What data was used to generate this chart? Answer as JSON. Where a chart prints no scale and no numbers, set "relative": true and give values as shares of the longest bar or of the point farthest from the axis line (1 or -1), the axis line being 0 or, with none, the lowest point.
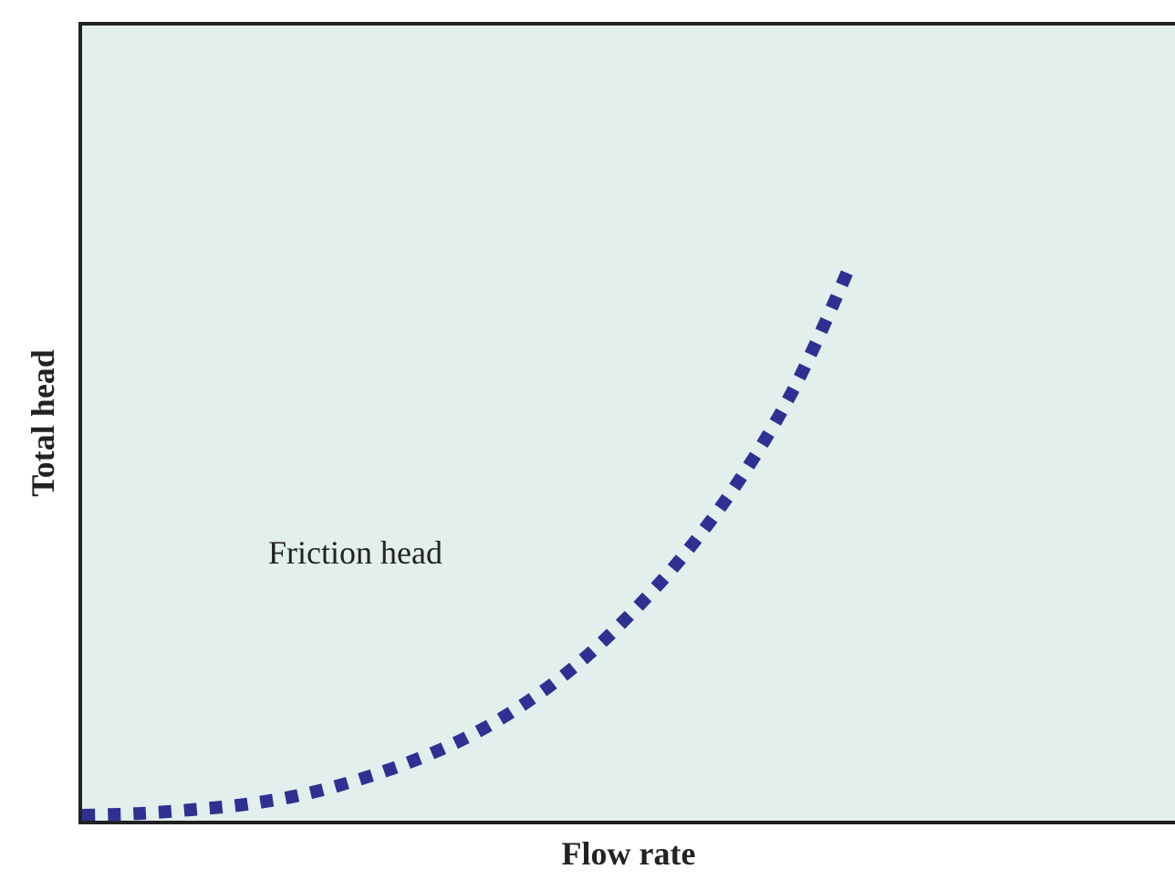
{
  "chart_data": {
    "type": "line",
    "relative": true,
    "xlabel": "Flow rate",
    "ylabel": "Total head",
    "categories": [
      null,
      null,
      null,
      null,
      null,
      null,
      null,
      null,
      null,
      null,
      null,
      null,
      null,
      null,
      null,
      null,
      null,
      null,
      null,
      null,
      null
    ],
    "series": [
      {
        "name": "Friction head",
        "color": "#2e3192",
        "values": [
          0.01,
          0.013,
          0.02,
          0.03,
          0.047,
          0.073,
          0.107,
          0.15,
          0.207,
          0.28,
          0.373,
          0.483,
          0.617,
          0.783,
          1,
          null,
          null,
          null,
          null,
          null,
          null
        ]
      }
    ],
    "line_style": "dashed",
    "grid": false,
    "legend": false
  }
}
